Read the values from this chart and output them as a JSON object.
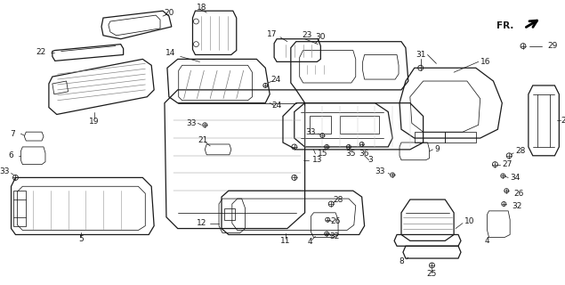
{
  "bg_color": "#ffffff",
  "line_color": "#1a1a1a",
  "fig_width": 6.35,
  "fig_height": 3.2,
  "dpi": 100,
  "label_fs": 6.5,
  "lw_main": 0.9,
  "lw_thin": 0.55
}
